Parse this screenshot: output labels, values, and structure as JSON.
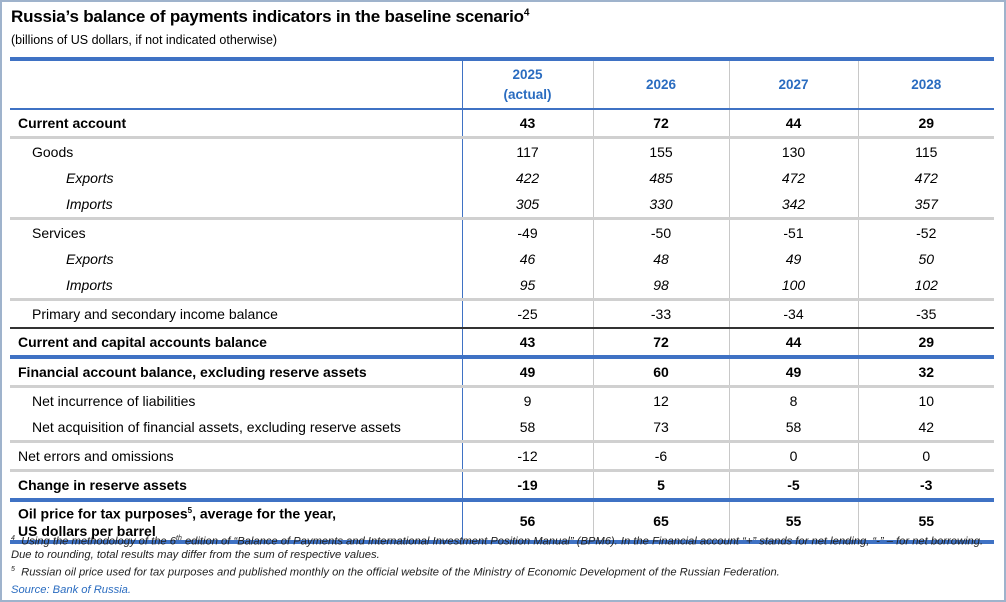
{
  "title": "Russia’s balance of payments indicators in the baseline scenario",
  "title_footnote": "4",
  "subtitle": "(billions of US dollars, if not indicated otherwise)",
  "columns": [
    {
      "year": "2025",
      "note": "(actual)"
    },
    {
      "year": "2026",
      "note": ""
    },
    {
      "year": "2027",
      "note": ""
    },
    {
      "year": "2028",
      "note": ""
    }
  ],
  "rows": [
    {
      "label": "Current account",
      "values": [
        "43",
        "72",
        "44",
        "29"
      ],
      "style": "b",
      "level": 0,
      "sep": "g"
    },
    {
      "label": "Goods",
      "values": [
        "117",
        "155",
        "130",
        "115"
      ],
      "style": "",
      "level": 1,
      "sep": ""
    },
    {
      "label": "Exports",
      "values": [
        "422",
        "485",
        "472",
        "472"
      ],
      "style": "i",
      "level": 2,
      "sep": ""
    },
    {
      "label": "Imports",
      "values": [
        "305",
        "330",
        "342",
        "357"
      ],
      "style": "i",
      "level": 2,
      "sep": "g"
    },
    {
      "label": "Services",
      "values": [
        "-49",
        "-50",
        "-51",
        "-52"
      ],
      "style": "",
      "level": 1,
      "sep": ""
    },
    {
      "label": "Exports",
      "values": [
        "46",
        "48",
        "49",
        "50"
      ],
      "style": "i",
      "level": 2,
      "sep": ""
    },
    {
      "label": "Imports",
      "values": [
        "95",
        "98",
        "100",
        "102"
      ],
      "style": "i",
      "level": 2,
      "sep": "g"
    },
    {
      "label": "Primary and secondary income balance",
      "values": [
        "-25",
        "-33",
        "-34",
        "-35"
      ],
      "style": "",
      "level": 1,
      "sep": "k"
    },
    {
      "label": "Current and capital accounts balance",
      "values": [
        "43",
        "72",
        "44",
        "29"
      ],
      "style": "b",
      "level": 0,
      "sep": "b"
    },
    {
      "label": "Financial account balance, excluding reserve assets",
      "values": [
        "49",
        "60",
        "49",
        "32"
      ],
      "style": "b",
      "level": 0,
      "sep": "g"
    },
    {
      "label": "Net incurrence of liabilities",
      "values": [
        "9",
        "12",
        "8",
        "10"
      ],
      "style": "",
      "level": 1,
      "sep": ""
    },
    {
      "label": "Net acquisition of financial assets, excluding reserve assets",
      "values": [
        "58",
        "73",
        "58",
        "42"
      ],
      "style": "",
      "level": 1,
      "sep": "g"
    },
    {
      "label": "Net errors and omissions",
      "values": [
        "-12",
        "-6",
        "0",
        "0"
      ],
      "style": "",
      "level": 0,
      "sep": "g"
    },
    {
      "label": "Change in reserve assets",
      "values": [
        "-19",
        "5",
        "-5",
        "-3"
      ],
      "style": "b",
      "level": 0,
      "sep": "b"
    }
  ],
  "oil_row": {
    "label_part1": "Oil price for tax purposes",
    "label_footnote": "5",
    "label_part2": ", average for the year,",
    "label_line2": "US dollars per barrel",
    "values": [
      "56",
      "65",
      "55",
      "55"
    ]
  },
  "footnotes": [
    {
      "mark": "4",
      "text_a": "Using the methodology of the 6",
      "sup": "th",
      "text_b": " edition of “Balance of Payments and International Investment Position Manual” (BPM6). In the Financial account “+” stands for net lending, “-” – for net borrowing. Due to rounding, total results may differ from the sum of respective values."
    },
    {
      "mark": "5",
      "text_a": "Russian oil price used for tax purposes and published monthly on the official website of the Ministry of Economic Development of the Russian Federation.",
      "sup": "",
      "text_b": ""
    }
  ],
  "source": "Source: Bank of Russia."
}
